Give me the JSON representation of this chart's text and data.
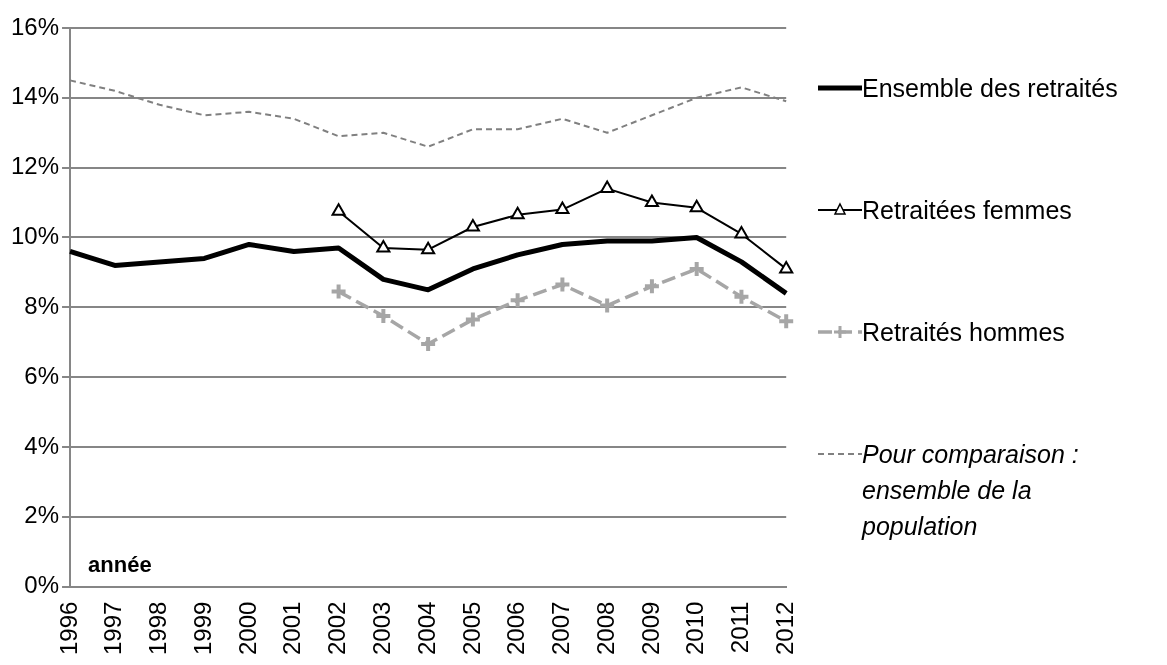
{
  "chart_data": {
    "type": "line",
    "categories": [
      "1996",
      "1997",
      "1998",
      "1999",
      "2000",
      "2001",
      "2002",
      "2003",
      "2004",
      "2005",
      "2006",
      "2007",
      "2008",
      "2009",
      "2010",
      "2011",
      "2012"
    ],
    "series": [
      {
        "name": "Ensemble des retraités",
        "color": "#000000",
        "marker": "none",
        "line_style": "solid",
        "values": [
          9.6,
          9.2,
          9.3,
          9.4,
          9.8,
          9.6,
          9.7,
          8.8,
          8.5,
          9.1,
          9.5,
          9.8,
          9.9,
          9.9,
          10.0,
          9.3,
          8.4
        ]
      },
      {
        "name": "Retraitées femmes",
        "color": "#000000",
        "marker": "triangle",
        "line_style": "solid",
        "values": [
          null,
          null,
          null,
          null,
          null,
          null,
          10.75,
          9.7,
          9.65,
          10.3,
          10.65,
          10.8,
          11.4,
          11.0,
          10.85,
          10.1,
          9.1
        ]
      },
      {
        "name": "Retraités hommes",
        "color": "#a6a6a6",
        "marker": "cross",
        "line_style": "dashed",
        "values": [
          null,
          null,
          null,
          null,
          null,
          null,
          8.45,
          7.75,
          6.95,
          7.65,
          8.2,
          8.65,
          8.05,
          8.6,
          9.1,
          8.3,
          7.6
        ]
      },
      {
        "name": "Pour comparaison : ensemble de la population",
        "color": "#808080",
        "marker": "none",
        "line_style": "dashed",
        "values": [
          14.5,
          14.2,
          13.8,
          13.5,
          13.6,
          13.4,
          12.9,
          13.0,
          12.6,
          13.1,
          13.1,
          13.4,
          13.0,
          13.5,
          14.0,
          14.3,
          13.9
        ]
      }
    ],
    "ylim": [
      0,
      16
    ],
    "yticks": [
      {
        "value": 0,
        "label": "0%"
      },
      {
        "value": 2,
        "label": "2%"
      },
      {
        "value": 4,
        "label": "4%"
      },
      {
        "value": 6,
        "label": "6%"
      },
      {
        "value": 8,
        "label": "8%"
      },
      {
        "value": 10,
        "label": "10%"
      },
      {
        "value": 12,
        "label": "12%"
      },
      {
        "value": 14,
        "label": "14%"
      },
      {
        "value": 16,
        "label": "16%"
      }
    ],
    "grid": "y",
    "legend": "right",
    "annotations": [
      "année"
    ]
  }
}
